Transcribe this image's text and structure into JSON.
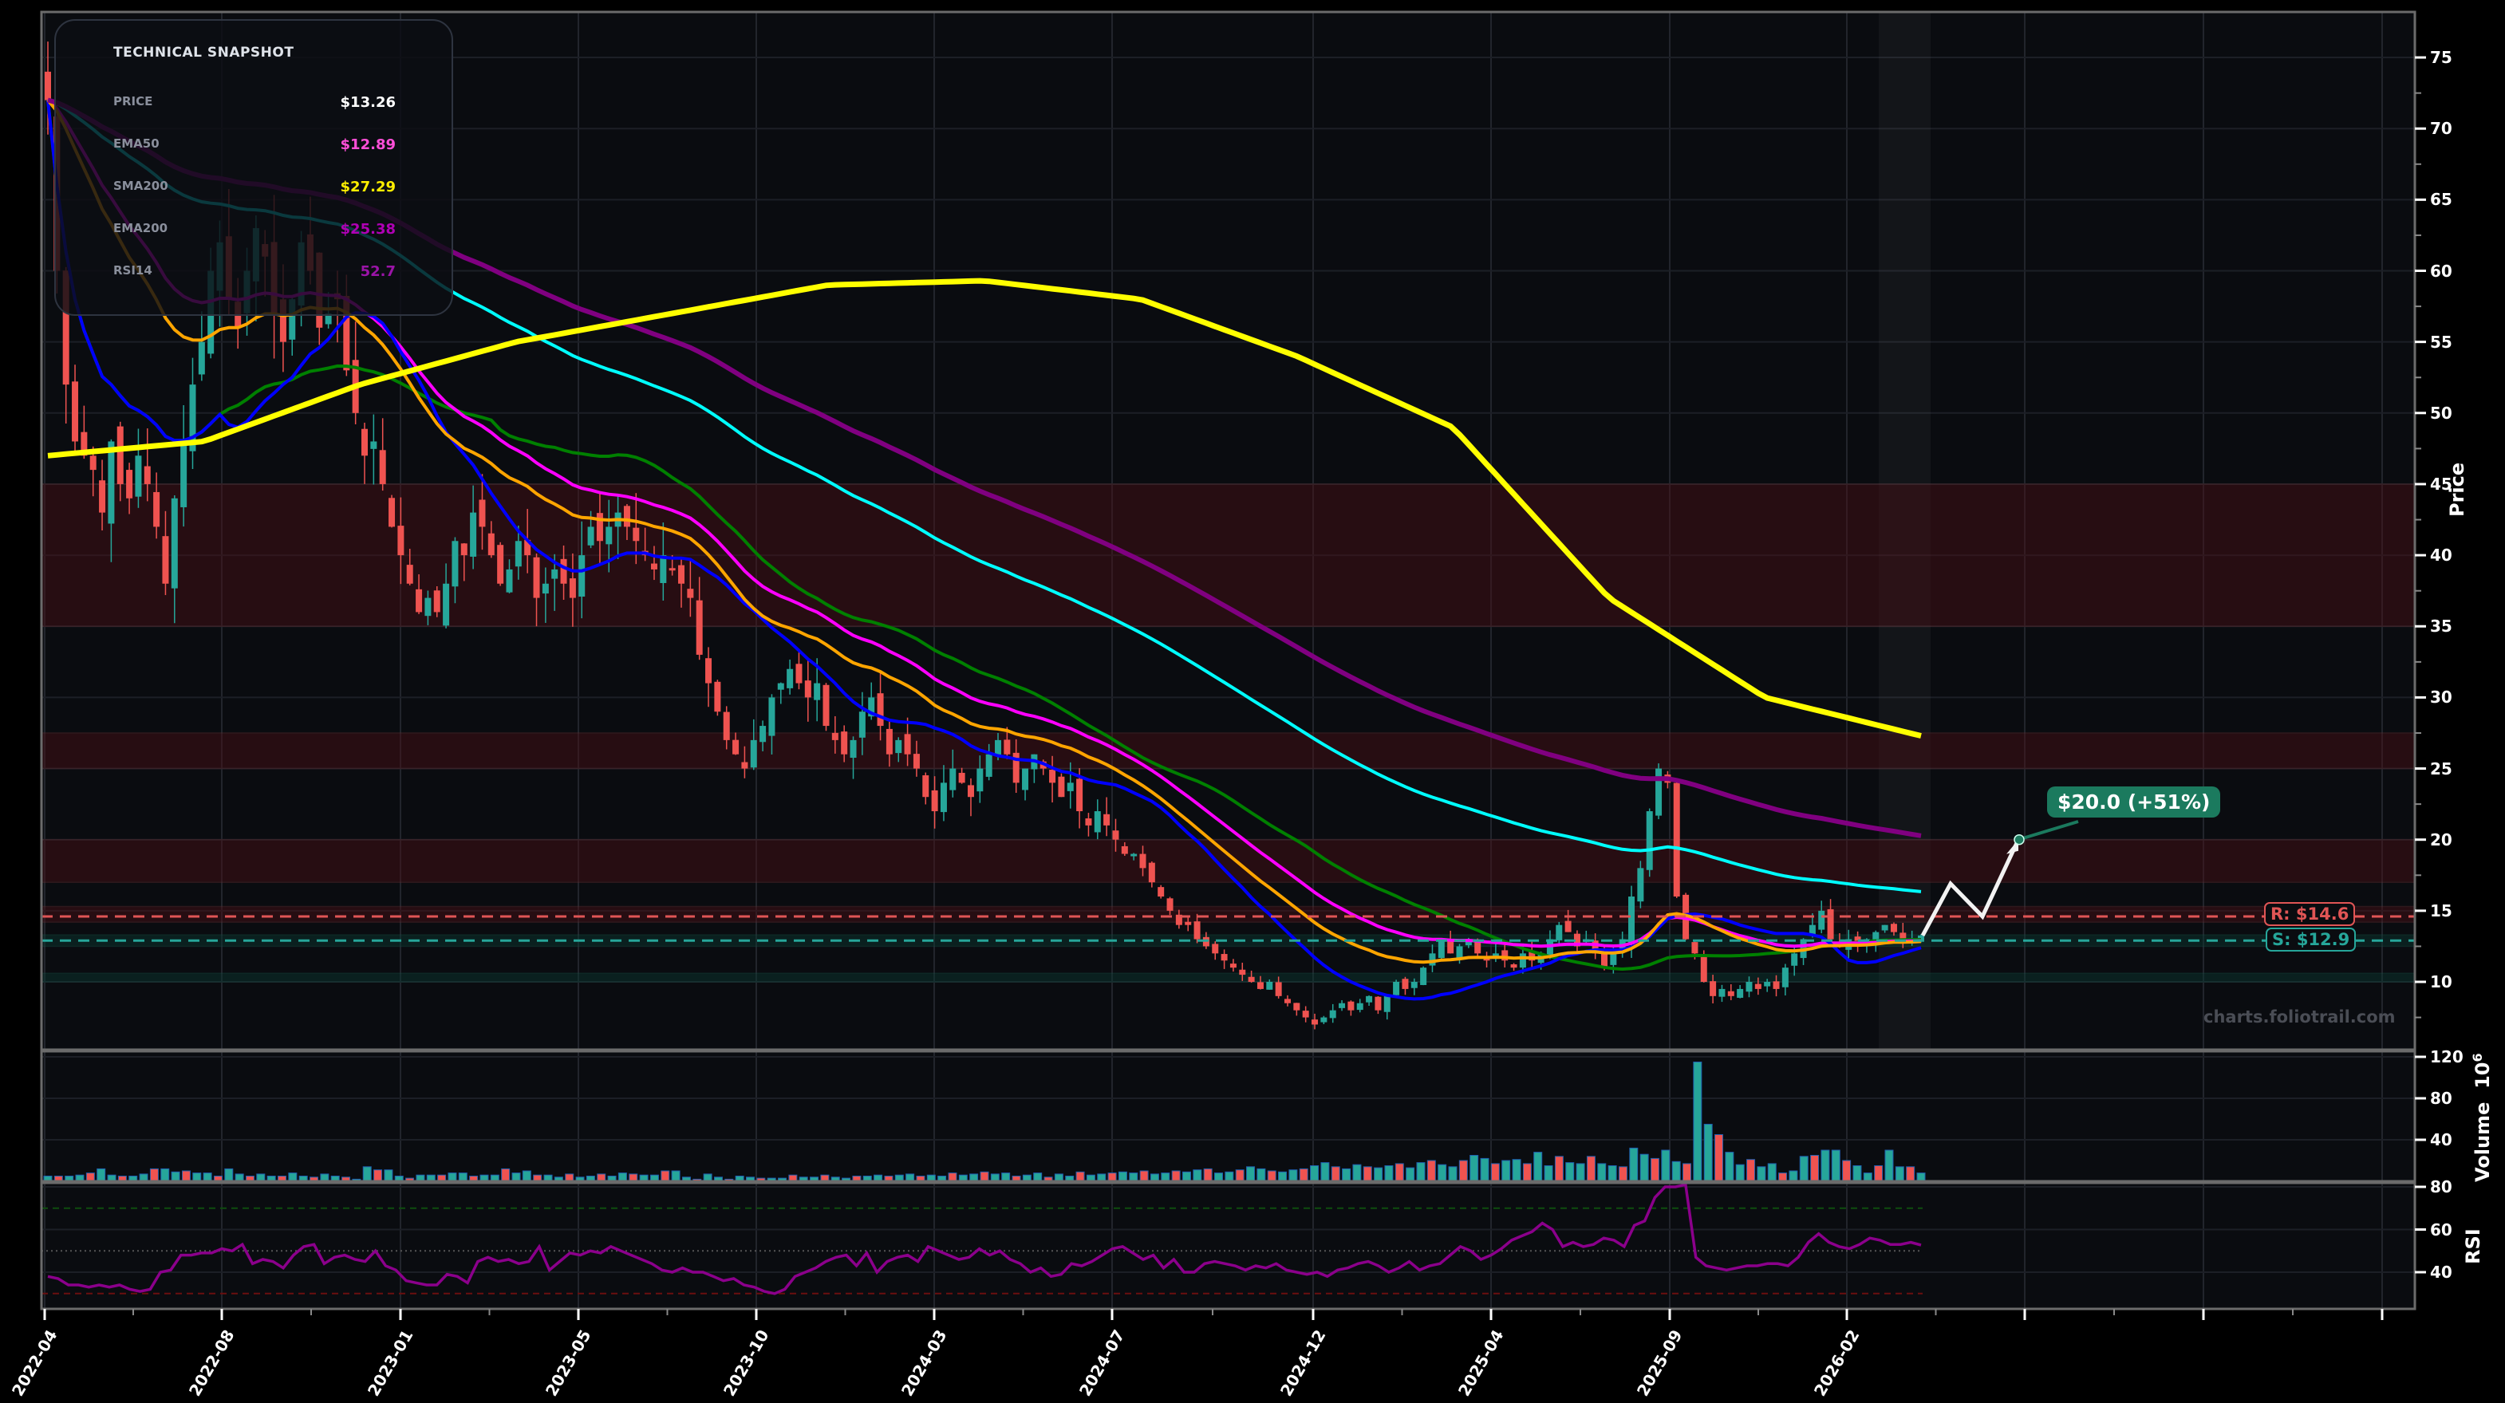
{
  "snapshot": {
    "title": "TECHNICAL SNAPSHOT",
    "rows": [
      {
        "label": "PRICE",
        "value": "$13.26",
        "color": "#ffffff"
      },
      {
        "label": "EMA50",
        "value": "$12.89",
        "color": "#ff4fd8"
      },
      {
        "label": "SMA200",
        "value": "$27.29",
        "color": "#ffee00"
      },
      {
        "label": "EMA200",
        "value": "$25.38",
        "color": "#b000b5"
      },
      {
        "label": "RSI14",
        "value": "52.7",
        "color": "#9b14a8"
      }
    ]
  },
  "levels": {
    "resistance_label": "R: $14.6",
    "support_label": "S: $12.9",
    "resistance": 14.6,
    "support": 12.9,
    "resistance_color": "#e05555",
    "support_color": "#26a69a"
  },
  "target": {
    "label": "$20.0 (+51%)",
    "price": 20.0,
    "color": "#1b7a5e"
  },
  "watermark": "charts.foliotrail.com",
  "axes": {
    "price_label": "Price",
    "volume_label": "Volume",
    "volume_exp": "10",
    "volume_exp_sup": "6",
    "rsi_label": "RSI",
    "price_ticks": [
      "75",
      "70",
      "65",
      "60",
      "55",
      "50",
      "45",
      "40",
      "35",
      "30",
      "25",
      "20",
      "15",
      "10"
    ],
    "volume_ticks": [
      "120",
      "80",
      "40"
    ],
    "rsi_ticks": [
      "80",
      "60",
      "40"
    ],
    "x_ticks": [
      "2022-04",
      "2022-08",
      "2023-01",
      "2023-05",
      "2023-10",
      "2024-03",
      "2024-07",
      "2024-12",
      "2025-04",
      "2025-09",
      "2026-02"
    ]
  },
  "colors": {
    "up": "#26a69a",
    "down": "#ef5350",
    "sma20": "#0000ff",
    "ema20": "#ffa500",
    "ema50": "#ff00ff",
    "sma50": "#008000",
    "sma100": "#00ffff",
    "ema200": "#800080",
    "sma200": "#ffff00",
    "rsi": "#8b008b",
    "background": "#0a0c10"
  },
  "chart_data": {
    "type": "candlestick",
    "title": "",
    "xlabel": "",
    "ylabel": "Price",
    "ylim": [
      5,
      78
    ],
    "x_tick_labels": [
      "2022-04",
      "2022-08",
      "2023-01",
      "2023-05",
      "2023-10",
      "2024-03",
      "2024-07",
      "2024-12",
      "2025-04",
      "2025-09",
      "2026-02"
    ],
    "zones": [
      {
        "low": 35,
        "high": 45,
        "type": "resistance"
      },
      {
        "low": 25,
        "high": 27.5,
        "type": "resistance"
      },
      {
        "low": 17,
        "high": 20,
        "type": "resistance"
      },
      {
        "low": 14.2,
        "high": 15.3,
        "type": "resistance"
      },
      {
        "low": 12.5,
        "high": 13.3,
        "type": "support"
      },
      {
        "low": 10.0,
        "high": 10.6,
        "type": "support"
      }
    ],
    "ohlc_close_approx": [
      72,
      60,
      52,
      48,
      47,
      46,
      43,
      48,
      45,
      44,
      47,
      45,
      42,
      38,
      44,
      48,
      52,
      55,
      60,
      62,
      58,
      56,
      60,
      63,
      61,
      57,
      55,
      58,
      62,
      60,
      56,
      57,
      58,
      53,
      50,
      47,
      48,
      45,
      42,
      40,
      38,
      36,
      37,
      36,
      38,
      41,
      40,
      43,
      42,
      40,
      38,
      39,
      41,
      40,
      37,
      38,
      39,
      38,
      37,
      40,
      42,
      41,
      42,
      43,
      42,
      41,
      40,
      39,
      40,
      39,
      38,
      37,
      33,
      31,
      29,
      27,
      26,
      25,
      27,
      28,
      30,
      31,
      32,
      31,
      30,
      31,
      28,
      27,
      26,
      27,
      29,
      30,
      28,
      26,
      27,
      26,
      25,
      23,
      22,
      24,
      25,
      24,
      23,
      25,
      26,
      27,
      26,
      24,
      25,
      26,
      25,
      24,
      23,
      24,
      22,
      21,
      22,
      21,
      20,
      19,
      19,
      18,
      17,
      16,
      15,
      14,
      14,
      13,
      12.5,
      12,
      11.5,
      11,
      10.5,
      10,
      9.5,
      10,
      9,
      8.5,
      8,
      7.5,
      7,
      7.5,
      8,
      8.5,
      8,
      8.5,
      9,
      8,
      9,
      10,
      9.5,
      10,
      11,
      12,
      13,
      12,
      12.5,
      13,
      12,
      11.5,
      12,
      11.5,
      11,
      12,
      11.5,
      12,
      13,
      14,
      13.5,
      12.5,
      13,
      12,
      11,
      12,
      13,
      16,
      18,
      22,
      25,
      24,
      16,
      13,
      12,
      10,
      9,
      9.5,
      9,
      9.5,
      10,
      9.5,
      10,
      9.5,
      11,
      12,
      13,
      14,
      15,
      13,
      12.5,
      13,
      12.5,
      13,
      13.5,
      14,
      13.5,
      12.8,
      13,
      13.26
    ],
    "moving_averages_end": {
      "EMA50": 12.89,
      "SMA200": 27.29,
      "EMA200": 25.38,
      "SMA100": 16.8,
      "SMA50": 14.6,
      "SMA20": 12.6,
      "EMA20": 11.8
    },
    "volume_unit": "1e6",
    "volume_ylim": [
      0,
      125
    ],
    "volume_approx": [
      5,
      5,
      5,
      6,
      8,
      12,
      6,
      5,
      5,
      7,
      12,
      12,
      9,
      10,
      8,
      8,
      5,
      12,
      7,
      5,
      7,
      5,
      5,
      8,
      5,
      4,
      7,
      5,
      4,
      2,
      14,
      11,
      11,
      5,
      3,
      6,
      6,
      6,
      8,
      8,
      5,
      6,
      6,
      12,
      8,
      10,
      6,
      6,
      4,
      7,
      4,
      5,
      7,
      5,
      8,
      7,
      6,
      6,
      10,
      10,
      4,
      2,
      7,
      4,
      2,
      5,
      4,
      3,
      3,
      3,
      6,
      4,
      4,
      6,
      4,
      3,
      5,
      5,
      6,
      5,
      6,
      7,
      5,
      6,
      5,
      8,
      6,
      7,
      9,
      7,
      8,
      5,
      6,
      8,
      4,
      7,
      5,
      9,
      6,
      7,
      8,
      9,
      8,
      10,
      7,
      8,
      10,
      9,
      11,
      12,
      8,
      9,
      11,
      14,
      12,
      10,
      9,
      11,
      12,
      15,
      18,
      14,
      12,
      16,
      14,
      13,
      15,
      17,
      13,
      18,
      20,
      16,
      14,
      20,
      25,
      22,
      17,
      20,
      21,
      17,
      28,
      15,
      24,
      18,
      17,
      24,
      17,
      15,
      14,
      32,
      26,
      22,
      30,
      19,
      17,
      115,
      55,
      45,
      28,
      16,
      21,
      14,
      17,
      8,
      10,
      24,
      25,
      30,
      30,
      20,
      15,
      8,
      15,
      30,
      14,
      14,
      8
    ],
    "rsi_ylim": [
      28,
      82
    ],
    "rsi_levels": {
      "overbought": 70,
      "mid": 50,
      "oversold": 30
    },
    "rsi_approx": [
      38,
      37,
      34,
      34,
      33,
      34,
      33,
      34,
      32,
      31,
      32,
      40,
      41,
      48,
      48,
      49,
      49,
      51,
      50,
      53,
      44,
      46,
      45,
      42,
      48,
      52,
      53,
      44,
      47,
      48,
      46,
      45,
      50,
      43,
      41,
      36,
      35,
      34,
      34,
      39,
      38,
      35,
      45,
      47,
      45,
      46,
      44,
      45,
      52,
      41,
      45,
      49,
      48,
      50,
      49,
      52,
      50,
      48,
      46,
      44,
      41,
      40,
      42,
      40,
      40,
      38,
      36,
      37,
      34,
      33,
      31,
      30,
      32,
      38,
      40,
      42,
      45,
      47,
      48,
      43,
      49,
      40,
      45,
      47,
      48,
      45,
      52,
      50,
      48,
      46,
      47,
      51,
      48,
      50,
      46,
      44,
      40,
      42,
      38,
      39,
      44,
      43,
      45,
      48,
      51,
      52,
      49,
      46,
      48,
      42,
      46,
      40,
      40,
      44,
      45,
      44,
      43,
      41,
      43,
      42,
      44,
      41,
      40,
      39,
      40,
      38,
      41,
      42,
      44,
      45,
      43,
      40,
      42,
      45,
      41,
      43,
      44,
      48,
      52,
      50,
      46,
      48,
      51,
      55,
      57,
      59,
      63,
      60,
      52,
      54,
      52,
      53,
      56,
      55,
      52,
      62,
      64,
      75,
      80,
      80,
      81,
      47,
      43,
      42,
      41,
      42,
      43,
      43,
      44,
      44,
      43,
      47,
      54,
      58,
      54,
      52,
      51,
      53,
      56,
      55,
      53,
      53,
      54,
      52.7
    ],
    "forecast_path": [
      13.26,
      16.9,
      14.6,
      20.0
    ]
  }
}
